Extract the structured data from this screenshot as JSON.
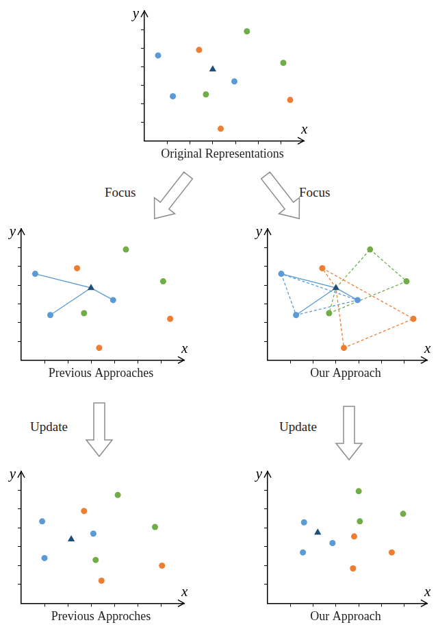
{
  "chart_data": [
    {
      "type": "scatter",
      "title": "Original Representations",
      "x_label": "x",
      "y_label": "y",
      "xlim": [
        0,
        7
      ],
      "ylim": [
        0,
        7
      ],
      "xticks": [
        1,
        2,
        3,
        4,
        5,
        6
      ],
      "yticks": [
        1,
        2,
        3,
        4,
        5,
        6
      ],
      "tick_labels": false,
      "grid": false,
      "series": [
        {
          "color": "#1f4e79",
          "marker": "triangle",
          "x": [
            3.0
          ],
          "y": [
            3.85
          ]
        },
        {
          "color": "#5b9bd5",
          "marker": "circle",
          "x": [
            0.6,
            1.25,
            3.95
          ],
          "y": [
            4.6,
            2.4,
            3.2
          ]
        },
        {
          "color": "#ed7d31",
          "marker": "circle",
          "x": [
            2.4,
            6.4,
            3.35
          ],
          "y": [
            4.9,
            2.2,
            0.65
          ]
        },
        {
          "color": "#70ad47",
          "marker": "circle",
          "x": [
            4.5,
            6.1,
            2.7
          ],
          "y": [
            5.9,
            4.2,
            2.5
          ]
        }
      ]
    },
    {
      "type": "scatter",
      "title": "Previous Approaches",
      "x_label": "x",
      "y_label": "y",
      "xlim": [
        0,
        7
      ],
      "ylim": [
        0,
        7
      ],
      "xticks": [
        1,
        2,
        3,
        4,
        5,
        6
      ],
      "yticks": [
        1,
        2,
        3,
        4,
        5,
        6
      ],
      "tick_labels": false,
      "grid": false,
      "series": [
        {
          "color": "#1f4e79",
          "marker": "triangle",
          "x": [
            3.0
          ],
          "y": [
            3.85
          ]
        },
        {
          "color": "#5b9bd5",
          "marker": "circle",
          "x": [
            0.6,
            1.25,
            3.95
          ],
          "y": [
            4.6,
            2.4,
            3.2
          ]
        },
        {
          "color": "#ed7d31",
          "marker": "circle",
          "x": [
            2.4,
            6.4,
            3.35
          ],
          "y": [
            4.9,
            2.2,
            0.65
          ]
        },
        {
          "color": "#70ad47",
          "marker": "circle",
          "x": [
            4.5,
            6.1,
            2.7
          ],
          "y": [
            5.9,
            4.2,
            2.5
          ]
        },
        {
          "type": "line",
          "color": "#5b9bd5",
          "marker": "none",
          "line_style": "solid",
          "x": [
            0.6,
            3.0,
            1.25
          ],
          "y": [
            4.6,
            3.85,
            2.4
          ]
        },
        {
          "type": "line",
          "color": "#5b9bd5",
          "marker": "none",
          "line_style": "solid",
          "x": [
            3.0,
            3.95
          ],
          "y": [
            3.85,
            3.2
          ]
        }
      ]
    },
    {
      "type": "scatter",
      "title": "Our Approach",
      "x_label": "x",
      "y_label": "y",
      "xlim": [
        0,
        7
      ],
      "ylim": [
        0,
        7
      ],
      "xticks": [
        1,
        2,
        3,
        4,
        5,
        6
      ],
      "yticks": [
        1,
        2,
        3,
        4,
        5,
        6
      ],
      "tick_labels": false,
      "grid": false,
      "series": [
        {
          "color": "#1f4e79",
          "marker": "triangle",
          "x": [
            3.0
          ],
          "y": [
            3.85
          ]
        },
        {
          "color": "#5b9bd5",
          "marker": "circle",
          "x": [
            0.6,
            1.25,
            3.95
          ],
          "y": [
            4.6,
            2.4,
            3.2
          ]
        },
        {
          "color": "#ed7d31",
          "marker": "circle",
          "x": [
            2.4,
            6.4,
            3.35
          ],
          "y": [
            4.9,
            2.2,
            0.65
          ]
        },
        {
          "color": "#70ad47",
          "marker": "circle",
          "x": [
            4.5,
            6.1,
            2.7
          ],
          "y": [
            5.9,
            4.2,
            2.5
          ]
        },
        {
          "type": "line",
          "color": "#5b9bd5",
          "marker": "none",
          "line_style": "solid",
          "x": [
            0.6,
            3.0,
            1.25
          ],
          "y": [
            4.6,
            3.85,
            2.4
          ]
        },
        {
          "type": "line",
          "color": "#5b9bd5",
          "marker": "none",
          "line_style": "solid",
          "x": [
            3.0,
            3.95
          ],
          "y": [
            3.85,
            3.2
          ]
        },
        {
          "type": "line",
          "color": "#5b9bd5",
          "marker": "none",
          "line_style": "dashed",
          "x": [
            0.6,
            1.25,
            3.95,
            0.6
          ],
          "y": [
            4.6,
            2.4,
            3.2,
            4.6
          ]
        },
        {
          "type": "line",
          "color": "#ed7d31",
          "marker": "none",
          "line_style": "dashed",
          "x": [
            2.4,
            6.4,
            3.35,
            3.0,
            2.4
          ],
          "y": [
            4.9,
            2.2,
            0.65,
            3.85,
            4.9
          ]
        },
        {
          "type": "line",
          "color": "#70ad47",
          "marker": "none",
          "line_style": "dashed",
          "x": [
            4.5,
            6.1,
            2.7,
            3.0,
            4.5
          ],
          "y": [
            5.9,
            4.2,
            2.5,
            3.85,
            5.9
          ]
        }
      ]
    },
    {
      "type": "scatter",
      "title": "Previous Approches",
      "x_label": "x",
      "y_label": "y",
      "xlim": [
        0,
        7
      ],
      "ylim": [
        0,
        7
      ],
      "xticks": [
        1,
        2,
        3,
        4,
        5,
        6
      ],
      "yticks": [
        1,
        2,
        3,
        4,
        5,
        6
      ],
      "tick_labels": false,
      "grid": false,
      "series": [
        {
          "color": "#1f4e79",
          "marker": "triangle",
          "x": [
            2.15
          ],
          "y": [
            3.4
          ]
        },
        {
          "color": "#5b9bd5",
          "marker": "circle",
          "x": [
            0.9,
            1.0,
            3.1
          ],
          "y": [
            4.35,
            2.4,
            3.7
          ]
        },
        {
          "color": "#ed7d31",
          "marker": "circle",
          "x": [
            2.7,
            6.05,
            3.45
          ],
          "y": [
            4.9,
            2.0,
            1.2
          ]
        },
        {
          "color": "#70ad47",
          "marker": "circle",
          "x": [
            4.15,
            5.75,
            3.2
          ],
          "y": [
            5.75,
            4.05,
            2.3
          ]
        }
      ]
    },
    {
      "type": "scatter",
      "title": "Our Approach",
      "x_label": "x",
      "y_label": "y",
      "xlim": [
        0,
        7
      ],
      "ylim": [
        0,
        7
      ],
      "xticks": [
        1,
        2,
        3,
        4,
        5,
        6
      ],
      "yticks": [
        1,
        2,
        3,
        4,
        5,
        6
      ],
      "tick_labels": false,
      "grid": false,
      "series": [
        {
          "color": "#1f4e79",
          "marker": "triangle",
          "x": [
            2.2
          ],
          "y": [
            3.75
          ]
        },
        {
          "color": "#5b9bd5",
          "marker": "circle",
          "x": [
            1.6,
            1.55,
            2.85
          ],
          "y": [
            4.3,
            2.7,
            3.2
          ]
        },
        {
          "color": "#ed7d31",
          "marker": "circle",
          "x": [
            3.8,
            5.45,
            3.75
          ],
          "y": [
            3.55,
            2.7,
            1.85
          ]
        },
        {
          "color": "#70ad47",
          "marker": "circle",
          "x": [
            4.0,
            4.05,
            5.95
          ],
          "y": [
            5.95,
            4.35,
            4.75
          ]
        }
      ]
    }
  ],
  "arrows": [
    {
      "label": "Focus"
    },
    {
      "label": "Focus"
    },
    {
      "label": "Update"
    },
    {
      "label": "Update"
    }
  ]
}
